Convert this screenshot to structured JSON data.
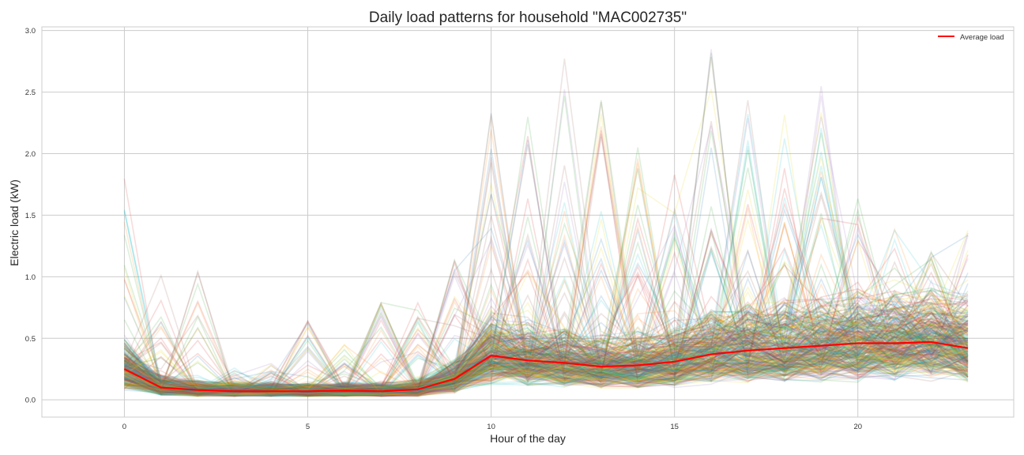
{
  "chart_data": {
    "type": "line",
    "title": "Daily load patterns for household \"MAC002735\"",
    "xlabel": "Hour of the day",
    "ylabel": "Electric load (kW)",
    "xlim": [
      -2.25,
      24.25
    ],
    "ylim": [
      -0.14,
      3.03
    ],
    "xticks": [
      0,
      5,
      10,
      15,
      20
    ],
    "xtick_labels": [
      "0",
      "5",
      "10",
      "15",
      "20"
    ],
    "yticks": [
      0.0,
      0.5,
      1.0,
      1.5,
      2.0,
      2.5,
      3.0
    ],
    "ytick_labels": [
      "0.0",
      "0.5",
      "1.0",
      "1.5",
      "2.0",
      "2.5",
      "3.0"
    ],
    "grid": true,
    "legend": {
      "position": "top-right",
      "entries": [
        {
          "label": "Average load",
          "color": "#ff0000"
        }
      ]
    },
    "x": [
      0,
      1,
      2,
      3,
      4,
      5,
      6,
      7,
      8,
      9,
      10,
      11,
      12,
      13,
      14,
      15,
      16,
      17,
      18,
      19,
      20,
      21,
      22,
      23
    ],
    "series": [
      {
        "name": "Average load",
        "color": "#ff0000",
        "values": [
          0.25,
          0.1,
          0.08,
          0.07,
          0.07,
          0.07,
          0.075,
          0.07,
          0.085,
          0.17,
          0.36,
          0.32,
          0.3,
          0.27,
          0.28,
          0.31,
          0.37,
          0.4,
          0.42,
          0.44,
          0.46,
          0.46,
          0.47,
          0.42
        ]
      }
    ],
    "daily_profiles": {
      "count": 365,
      "alpha": 0.16,
      "palette": [
        "#1f77b4",
        "#d62728",
        "#2ca02c",
        "#e6d200",
        "#9467bd",
        "#8c564b",
        "#17becf",
        "#ff7f0e"
      ],
      "hourly_low": [
        0.05,
        0.04,
        0.03,
        0.03,
        0.03,
        0.03,
        0.03,
        0.03,
        0.03,
        0.04,
        0.05,
        0.04,
        0.04,
        0.04,
        0.04,
        0.05,
        0.08,
        0.08,
        0.08,
        0.08,
        0.08,
        0.1,
        0.08,
        0.05
      ],
      "hourly_high": [
        1.8,
        1.05,
        1.05,
        0.3,
        0.32,
        0.65,
        0.45,
        0.8,
        0.8,
        1.2,
        2.35,
        2.52,
        2.82,
        2.45,
        2.1,
        1.9,
        2.9,
        2.55,
        2.45,
        2.65,
        1.75,
        1.42,
        1.36,
        1.45
      ]
    }
  }
}
